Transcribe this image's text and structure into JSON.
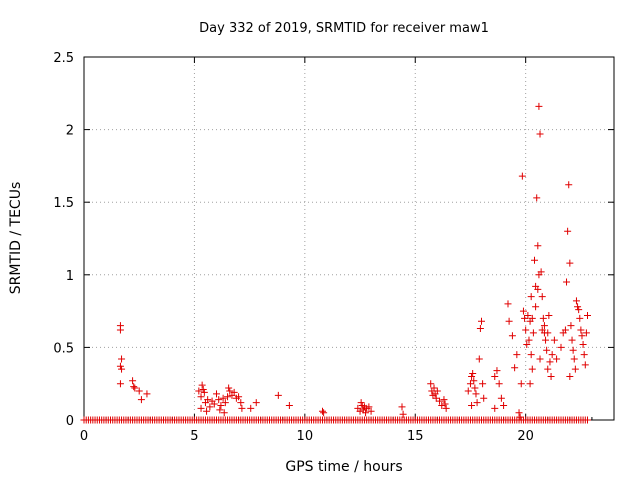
{
  "chart_data": {
    "type": "scatter",
    "title": "Day 332 of 2019, SRMTID for receiver maw1",
    "xlabel": "GPS time / hours",
    "ylabel": "SRMTID / TECUs",
    "xlim": [
      0,
      24
    ],
    "ylim": [
      0,
      2.5
    ],
    "xticks": [
      0,
      5,
      10,
      15,
      20
    ],
    "yticks": [
      0,
      0.5,
      1,
      1.5,
      2,
      2.5
    ],
    "xtick_labels": [
      "0",
      "5",
      "10",
      "15",
      "20"
    ],
    "ytick_labels": [
      "0",
      "0.5",
      "1",
      "1.5",
      "2",
      "2.5"
    ],
    "grid": true,
    "marker": "+",
    "color": "#e00000",
    "baseline": {
      "x_start": 0.0,
      "x_end": 22.8,
      "step": 0.1,
      "y": 0
    },
    "series": [
      {
        "name": "maw1",
        "points": [
          [
            1.65,
            0.65
          ],
          [
            1.65,
            0.62
          ],
          [
            1.7,
            0.42
          ],
          [
            1.65,
            0.37
          ],
          [
            1.7,
            0.35
          ],
          [
            1.65,
            0.25
          ],
          [
            2.2,
            0.27
          ],
          [
            2.25,
            0.23
          ],
          [
            2.3,
            0.22
          ],
          [
            2.5,
            0.2
          ],
          [
            2.6,
            0.14
          ],
          [
            2.85,
            0.18
          ],
          [
            5.2,
            0.2
          ],
          [
            5.3,
            0.16
          ],
          [
            5.35,
            0.24
          ],
          [
            5.4,
            0.21
          ],
          [
            5.45,
            0.19
          ],
          [
            5.5,
            0.12
          ],
          [
            5.6,
            0.14
          ],
          [
            5.7,
            0.09
          ],
          [
            5.8,
            0.13
          ],
          [
            5.9,
            0.11
          ],
          [
            6.0,
            0.18
          ],
          [
            6.1,
            0.14
          ],
          [
            6.2,
            0.1
          ],
          [
            6.3,
            0.15
          ],
          [
            6.4,
            0.12
          ],
          [
            6.5,
            0.16
          ],
          [
            6.55,
            0.22
          ],
          [
            6.6,
            0.2
          ],
          [
            6.7,
            0.17
          ],
          [
            6.8,
            0.19
          ],
          [
            6.9,
            0.15
          ],
          [
            7.0,
            0.16
          ],
          [
            7.1,
            0.12
          ],
          [
            7.15,
            0.08
          ],
          [
            5.3,
            0.08
          ],
          [
            5.55,
            0.06
          ],
          [
            6.15,
            0.07
          ],
          [
            6.35,
            0.05
          ],
          [
            7.8,
            0.12
          ],
          [
            7.55,
            0.08
          ],
          [
            8.8,
            0.17
          ],
          [
            9.3,
            0.1
          ],
          [
            10.8,
            0.06
          ],
          [
            10.85,
            0.05
          ],
          [
            12.4,
            0.08
          ],
          [
            12.5,
            0.06
          ],
          [
            12.55,
            0.12
          ],
          [
            12.6,
            0.1
          ],
          [
            12.65,
            0.07
          ],
          [
            12.7,
            0.09
          ],
          [
            12.75,
            0.05
          ],
          [
            12.8,
            0.08
          ],
          [
            12.9,
            0.09
          ],
          [
            13.0,
            0.06
          ],
          [
            14.4,
            0.09
          ],
          [
            14.45,
            0.04
          ],
          [
            15.7,
            0.25
          ],
          [
            15.75,
            0.2
          ],
          [
            15.8,
            0.17
          ],
          [
            15.85,
            0.22
          ],
          [
            15.9,
            0.18
          ],
          [
            15.95,
            0.15
          ],
          [
            16.0,
            0.2
          ],
          [
            16.1,
            0.13
          ],
          [
            16.2,
            0.1
          ],
          [
            16.3,
            0.14
          ],
          [
            16.35,
            0.11
          ],
          [
            16.4,
            0.08
          ],
          [
            17.4,
            0.2
          ],
          [
            17.5,
            0.25
          ],
          [
            17.55,
            0.3
          ],
          [
            17.6,
            0.32
          ],
          [
            17.65,
            0.27
          ],
          [
            17.7,
            0.22
          ],
          [
            17.75,
            0.18
          ],
          [
            17.8,
            0.12
          ],
          [
            17.9,
            0.42
          ],
          [
            17.95,
            0.63
          ],
          [
            18.0,
            0.68
          ],
          [
            18.05,
            0.25
          ],
          [
            18.1,
            0.15
          ],
          [
            17.55,
            0.1
          ],
          [
            18.6,
            0.3
          ],
          [
            18.7,
            0.34
          ],
          [
            18.8,
            0.25
          ],
          [
            18.9,
            0.15
          ],
          [
            18.6,
            0.08
          ],
          [
            19.0,
            0.1
          ],
          [
            19.2,
            0.8
          ],
          [
            19.25,
            0.68
          ],
          [
            19.4,
            0.58
          ],
          [
            19.5,
            0.36
          ],
          [
            19.6,
            0.45
          ],
          [
            19.7,
            0.05
          ],
          [
            19.75,
            0.02
          ],
          [
            19.8,
            0.25
          ],
          [
            19.85,
            1.68
          ],
          [
            19.9,
            0.75
          ],
          [
            19.95,
            0.7
          ],
          [
            20.0,
            0.62
          ],
          [
            20.05,
            0.52
          ],
          [
            20.1,
            0.72
          ],
          [
            20.15,
            0.55
          ],
          [
            20.2,
            0.68
          ],
          [
            20.25,
            0.45
          ],
          [
            20.3,
            0.7
          ],
          [
            20.35,
            0.6
          ],
          [
            20.4,
            1.1
          ],
          [
            20.45,
            0.92
          ],
          [
            20.5,
            1.53
          ],
          [
            20.55,
            1.2
          ],
          [
            20.6,
            2.16
          ],
          [
            20.65,
            1.97
          ],
          [
            20.7,
            1.02
          ],
          [
            20.75,
            0.85
          ],
          [
            20.8,
            0.7
          ],
          [
            20.85,
            0.65
          ],
          [
            20.9,
            0.55
          ],
          [
            20.95,
            0.48
          ],
          [
            21.0,
            0.6
          ],
          [
            21.05,
            0.72
          ],
          [
            21.1,
            0.4
          ],
          [
            21.15,
            0.3
          ],
          [
            21.2,
            0.45
          ],
          [
            21.3,
            0.55
          ],
          [
            21.4,
            0.42
          ],
          [
            20.25,
            0.85
          ],
          [
            20.3,
            0.35
          ],
          [
            20.45,
            0.78
          ],
          [
            20.55,
            0.9
          ],
          [
            20.6,
            1.0
          ],
          [
            20.65,
            0.42
          ],
          [
            20.75,
            0.62
          ],
          [
            20.85,
            0.6
          ],
          [
            21.0,
            0.35
          ],
          [
            20.2,
            0.25
          ],
          [
            21.6,
            0.5
          ],
          [
            21.7,
            0.6
          ],
          [
            21.8,
            0.62
          ],
          [
            21.85,
            0.95
          ],
          [
            21.9,
            1.3
          ],
          [
            21.95,
            1.62
          ],
          [
            22.0,
            1.08
          ],
          [
            22.05,
            0.65
          ],
          [
            22.1,
            0.55
          ],
          [
            22.15,
            0.48
          ],
          [
            22.2,
            0.42
          ],
          [
            22.25,
            0.35
          ],
          [
            22.3,
            0.82
          ],
          [
            22.35,
            0.78
          ],
          [
            22.4,
            0.76
          ],
          [
            22.45,
            0.7
          ],
          [
            22.5,
            0.62
          ],
          [
            22.55,
            0.58
          ],
          [
            22.6,
            0.52
          ],
          [
            22.65,
            0.45
          ],
          [
            22.7,
            0.38
          ],
          [
            22.75,
            0.6
          ],
          [
            22.8,
            0.72
          ],
          [
            22.0,
            0.3
          ]
        ]
      }
    ]
  }
}
